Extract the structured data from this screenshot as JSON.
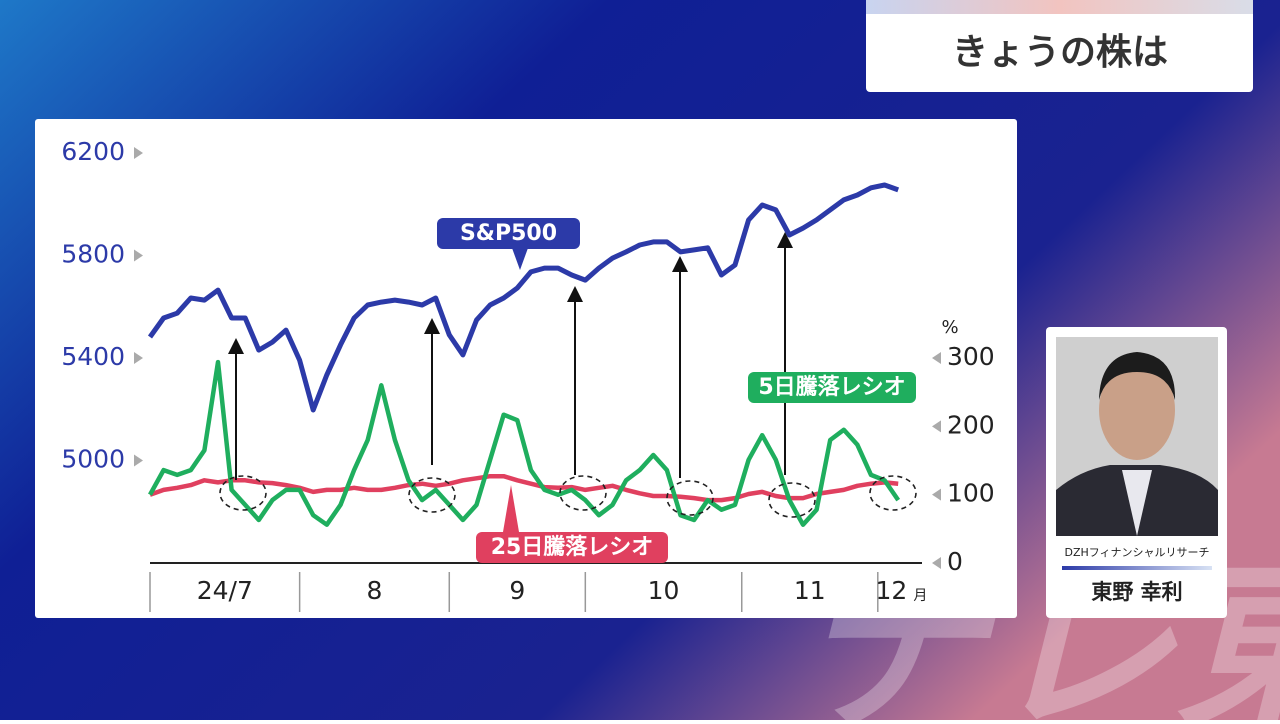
{
  "header": {
    "title": "きょうの株は"
  },
  "presenter": {
    "company": "DZHフィナンシャルリサーチ",
    "name": "東野 幸利"
  },
  "watermark": "テレ東",
  "chart_data": {
    "type": "line",
    "categories": [
      "24/7",
      "8",
      "9",
      "10",
      "11",
      "12"
    ],
    "x_unit": "月",
    "month_starts": [
      0,
      22,
      44,
      64,
      87,
      107
    ],
    "x": [
      0,
      2,
      4,
      6,
      8,
      10,
      12,
      14,
      16,
      18,
      20,
      22,
      24,
      26,
      28,
      30,
      32,
      34,
      36,
      38,
      40,
      42,
      44,
      46,
      48,
      50,
      52,
      54,
      56,
      58,
      60,
      62,
      64,
      66,
      68,
      70,
      72,
      74,
      76,
      78,
      80,
      82,
      84,
      86,
      88,
      90,
      92,
      94,
      96,
      98,
      100,
      102,
      104,
      106,
      108,
      110
    ],
    "xlim": [
      0,
      111
    ],
    "ylim": [
      4600,
      6200
    ],
    "yticks": [
      5000,
      5400,
      5800,
      6200
    ],
    "y2lim": [
      0,
      600
    ],
    "y2ticks": [
      0,
      100,
      200,
      300
    ],
    "y2_unit": "%",
    "series": [
      {
        "name": "S&P500",
        "color": "#2c3aa8",
        "axis": "y",
        "values": [
          5482,
          5556,
          5575,
          5634,
          5626,
          5665,
          5556,
          5556,
          5431,
          5462,
          5509,
          5392,
          5197,
          5334,
          5451,
          5556,
          5607,
          5618,
          5626,
          5618,
          5607,
          5634,
          5490,
          5412,
          5548,
          5607,
          5634,
          5673,
          5736,
          5751,
          5751,
          5724,
          5704,
          5751,
          5790,
          5814,
          5841,
          5853,
          5853,
          5814,
          5822,
          5830,
          5724,
          5763,
          5939,
          5997,
          5978,
          5880,
          5907,
          5939,
          5978,
          6017,
          6036,
          6064,
          6075,
          6056
        ]
      },
      {
        "name": "5日騰落レシオ",
        "color": "#1fae5e",
        "axis": "y2",
        "values": [
          100,
          136,
          129,
          136,
          165,
          294,
          107,
          85,
          63,
          92,
          107,
          107,
          70,
          56,
          85,
          136,
          180,
          260,
          180,
          121,
          92,
          107,
          85,
          63,
          85,
          151,
          217,
          209,
          136,
          107,
          100,
          107,
          92,
          70,
          85,
          121,
          136,
          158,
          136,
          70,
          63,
          92,
          78,
          85,
          151,
          187,
          151,
          92,
          56,
          78,
          180,
          195,
          173,
          129,
          121,
          92
        ]
      },
      {
        "name": "25日騰落レシオ",
        "color": "#e0405f",
        "axis": "y2",
        "values": [
          100,
          107,
          110,
          114,
          121,
          118,
          121,
          121,
          118,
          117,
          114,
          110,
          104,
          107,
          107,
          110,
          107,
          107,
          110,
          114,
          116,
          113,
          116,
          121,
          124,
          127,
          127,
          121,
          116,
          111,
          110,
          111,
          107,
          110,
          113,
          107,
          102,
          98,
          98,
          97,
          95,
          92,
          92,
          95,
          101,
          104,
          98,
          95,
          95,
          101,
          104,
          107,
          113,
          116,
          118,
          116
        ]
      }
    ]
  }
}
